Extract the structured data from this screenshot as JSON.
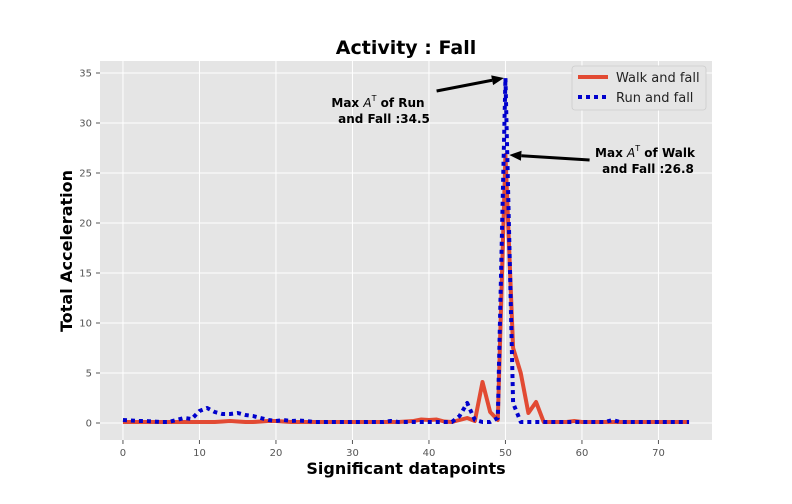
{
  "chart_data": {
    "type": "line",
    "title": "Activity : Fall",
    "xlabel": "Significant datapoints",
    "ylabel": "Total Acceleration",
    "xlim": [
      -3,
      77
    ],
    "ylim": [
      -1.7,
      36.2
    ],
    "xticks": [
      0,
      10,
      20,
      30,
      40,
      50,
      60,
      70
    ],
    "yticks": [
      0,
      5,
      10,
      15,
      20,
      25,
      30,
      35
    ],
    "grid": true,
    "legend_position": "top-right",
    "background": "#e5e5e5",
    "series": [
      {
        "name": "Walk and fall",
        "color": "#e24a33",
        "style": "solid",
        "x": [
          0,
          1,
          2,
          3,
          4,
          5,
          6,
          7,
          8,
          9,
          10,
          11,
          12,
          13,
          14,
          15,
          16,
          17,
          18,
          19,
          20,
          21,
          22,
          23,
          24,
          25,
          26,
          27,
          28,
          29,
          30,
          31,
          32,
          33,
          34,
          35,
          36,
          37,
          38,
          39,
          40,
          41,
          42,
          43,
          44,
          45,
          46,
          47,
          48,
          49,
          50,
          51,
          52,
          53,
          54,
          55,
          56,
          57,
          58,
          59,
          60,
          61,
          62,
          63,
          64,
          65,
          66,
          67,
          68,
          69,
          70,
          71,
          72,
          73,
          74
        ],
        "y": [
          0.1,
          0.1,
          0.1,
          0.1,
          0.1,
          0.1,
          0.1,
          0.1,
          0.1,
          0.1,
          0.1,
          0.1,
          0.1,
          0.15,
          0.2,
          0.15,
          0.1,
          0.1,
          0.15,
          0.2,
          0.2,
          0.15,
          0.1,
          0.1,
          0.1,
          0.1,
          0.1,
          0.1,
          0.1,
          0.1,
          0.1,
          0.1,
          0.1,
          0.1,
          0.1,
          0.1,
          0.1,
          0.15,
          0.2,
          0.35,
          0.3,
          0.35,
          0.15,
          0.1,
          0.3,
          0.5,
          0.2,
          4.1,
          1.1,
          0.3,
          26.8,
          7.5,
          5.0,
          1.0,
          2.1,
          0.1,
          0.1,
          0.1,
          0.1,
          0.2,
          0.1,
          0.1,
          0.1,
          0.1,
          0.1,
          0.1,
          0.1,
          0.1,
          0.1,
          0.1,
          0.1,
          0.1,
          0.1,
          0.1,
          0.1
        ]
      },
      {
        "name": "Run and fall",
        "color": "#0000cc",
        "style": "dotted",
        "x": [
          0,
          1,
          2,
          3,
          4,
          5,
          6,
          7,
          8,
          9,
          10,
          11,
          12,
          13,
          14,
          15,
          16,
          17,
          18,
          19,
          20,
          21,
          22,
          23,
          24,
          25,
          26,
          27,
          28,
          29,
          30,
          31,
          32,
          33,
          34,
          35,
          36,
          37,
          38,
          39,
          40,
          41,
          42,
          43,
          44,
          45,
          46,
          47,
          48,
          49,
          50,
          51,
          52,
          53,
          54,
          55,
          56,
          57,
          58,
          59,
          60,
          61,
          62,
          63,
          64,
          65,
          66,
          67,
          68,
          69,
          70,
          71,
          72,
          73,
          74
        ],
        "y": [
          0.3,
          0.25,
          0.2,
          0.2,
          0.15,
          0.1,
          0.1,
          0.3,
          0.5,
          0.4,
          1.2,
          1.5,
          1.1,
          0.9,
          0.9,
          1.0,
          0.8,
          0.7,
          0.5,
          0.3,
          0.2,
          0.3,
          0.2,
          0.25,
          0.2,
          0.1,
          0.1,
          0.1,
          0.1,
          0.1,
          0.1,
          0.1,
          0.1,
          0.1,
          0.1,
          0.2,
          0.1,
          0.1,
          0.1,
          0.1,
          0.1,
          0.1,
          0.1,
          0.1,
          0.7,
          2.0,
          0.3,
          0.1,
          0.1,
          0.5,
          34.5,
          2.0,
          0.1,
          0.1,
          0.1,
          0.1,
          0.1,
          0.1,
          0.1,
          0.1,
          0.1,
          0.1,
          0.1,
          0.1,
          0.3,
          0.1,
          0.1,
          0.1,
          0.1,
          0.1,
          0.1,
          0.1,
          0.1,
          0.1,
          0.1
        ]
      }
    ],
    "annotations": [
      {
        "text_line1_pre": "Max ",
        "text_line1_sym": "A",
        "text_line1_sup": "T",
        "text_line1_post": " of Run",
        "text_line2": "and Fall :34.5",
        "arrow_to": [
          49.8,
          34.5
        ],
        "arrow_from": [
          41,
          33.2
        ]
      },
      {
        "text_line1_pre": "Max ",
        "text_line1_sym": "A",
        "text_line1_sup": "T",
        "text_line1_post": " of Walk",
        "text_line2": "and Fall :26.8",
        "arrow_to": [
          50.5,
          26.8
        ],
        "arrow_from": [
          61,
          26.3
        ]
      }
    ]
  }
}
